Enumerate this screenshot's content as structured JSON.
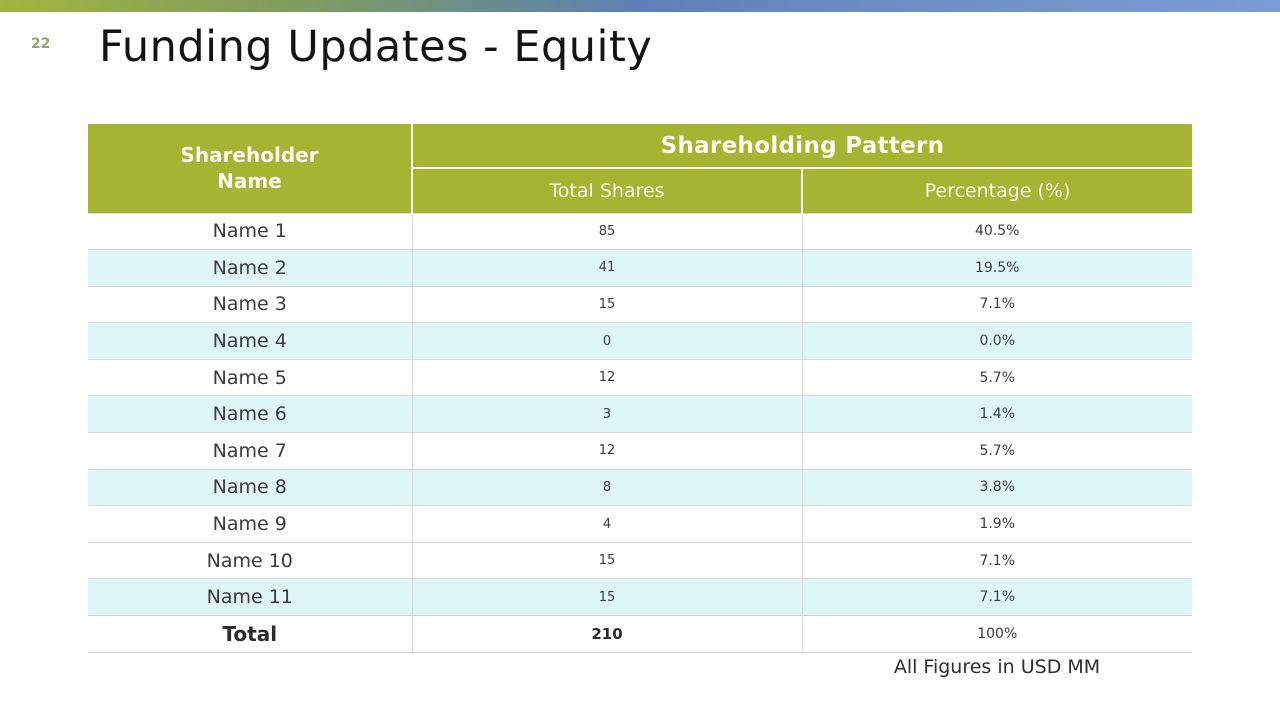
{
  "slide": {
    "page_number": "22",
    "title": "Funding Updates - Equity",
    "footnote": "All Figures in USD MM"
  },
  "table": {
    "shareholder_header": "Shareholder Name",
    "group_header": "Shareholding Pattern",
    "sub_headers": [
      "Total Shares",
      "Percentage (%)"
    ],
    "rows": [
      {
        "name": "Name 1",
        "shares": "85",
        "pct": "40.5%"
      },
      {
        "name": "Name 2",
        "shares": "41",
        "pct": "19.5%"
      },
      {
        "name": "Name 3",
        "shares": "15",
        "pct": "7.1%"
      },
      {
        "name": "Name 4",
        "shares": "0",
        "pct": "0.0%"
      },
      {
        "name": "Name 5",
        "shares": "12",
        "pct": "5.7%"
      },
      {
        "name": "Name 6",
        "shares": "3",
        "pct": "1.4%"
      },
      {
        "name": "Name 7",
        "shares": "12",
        "pct": "5.7%"
      },
      {
        "name": "Name 8",
        "shares": "8",
        "pct": "3.8%"
      },
      {
        "name": "Name 9",
        "shares": "4",
        "pct": "1.9%"
      },
      {
        "name": "Name 10",
        "shares": "15",
        "pct": "7.1%"
      },
      {
        "name": "Name 11",
        "shares": "15",
        "pct": "7.1%"
      }
    ],
    "total_row": {
      "name": "Total",
      "shares": "210",
      "pct": "100%"
    }
  },
  "colors": {
    "header_green": "#a3b531",
    "alt_row_cyan": "#dff6f7",
    "gradient_left_green": "#a3b53f",
    "gradient_mid_blue": "#5d80b5",
    "gradient_right_blue": "#7c9dd3",
    "page_number_green": "#85ae69",
    "title_text": "#141414"
  }
}
